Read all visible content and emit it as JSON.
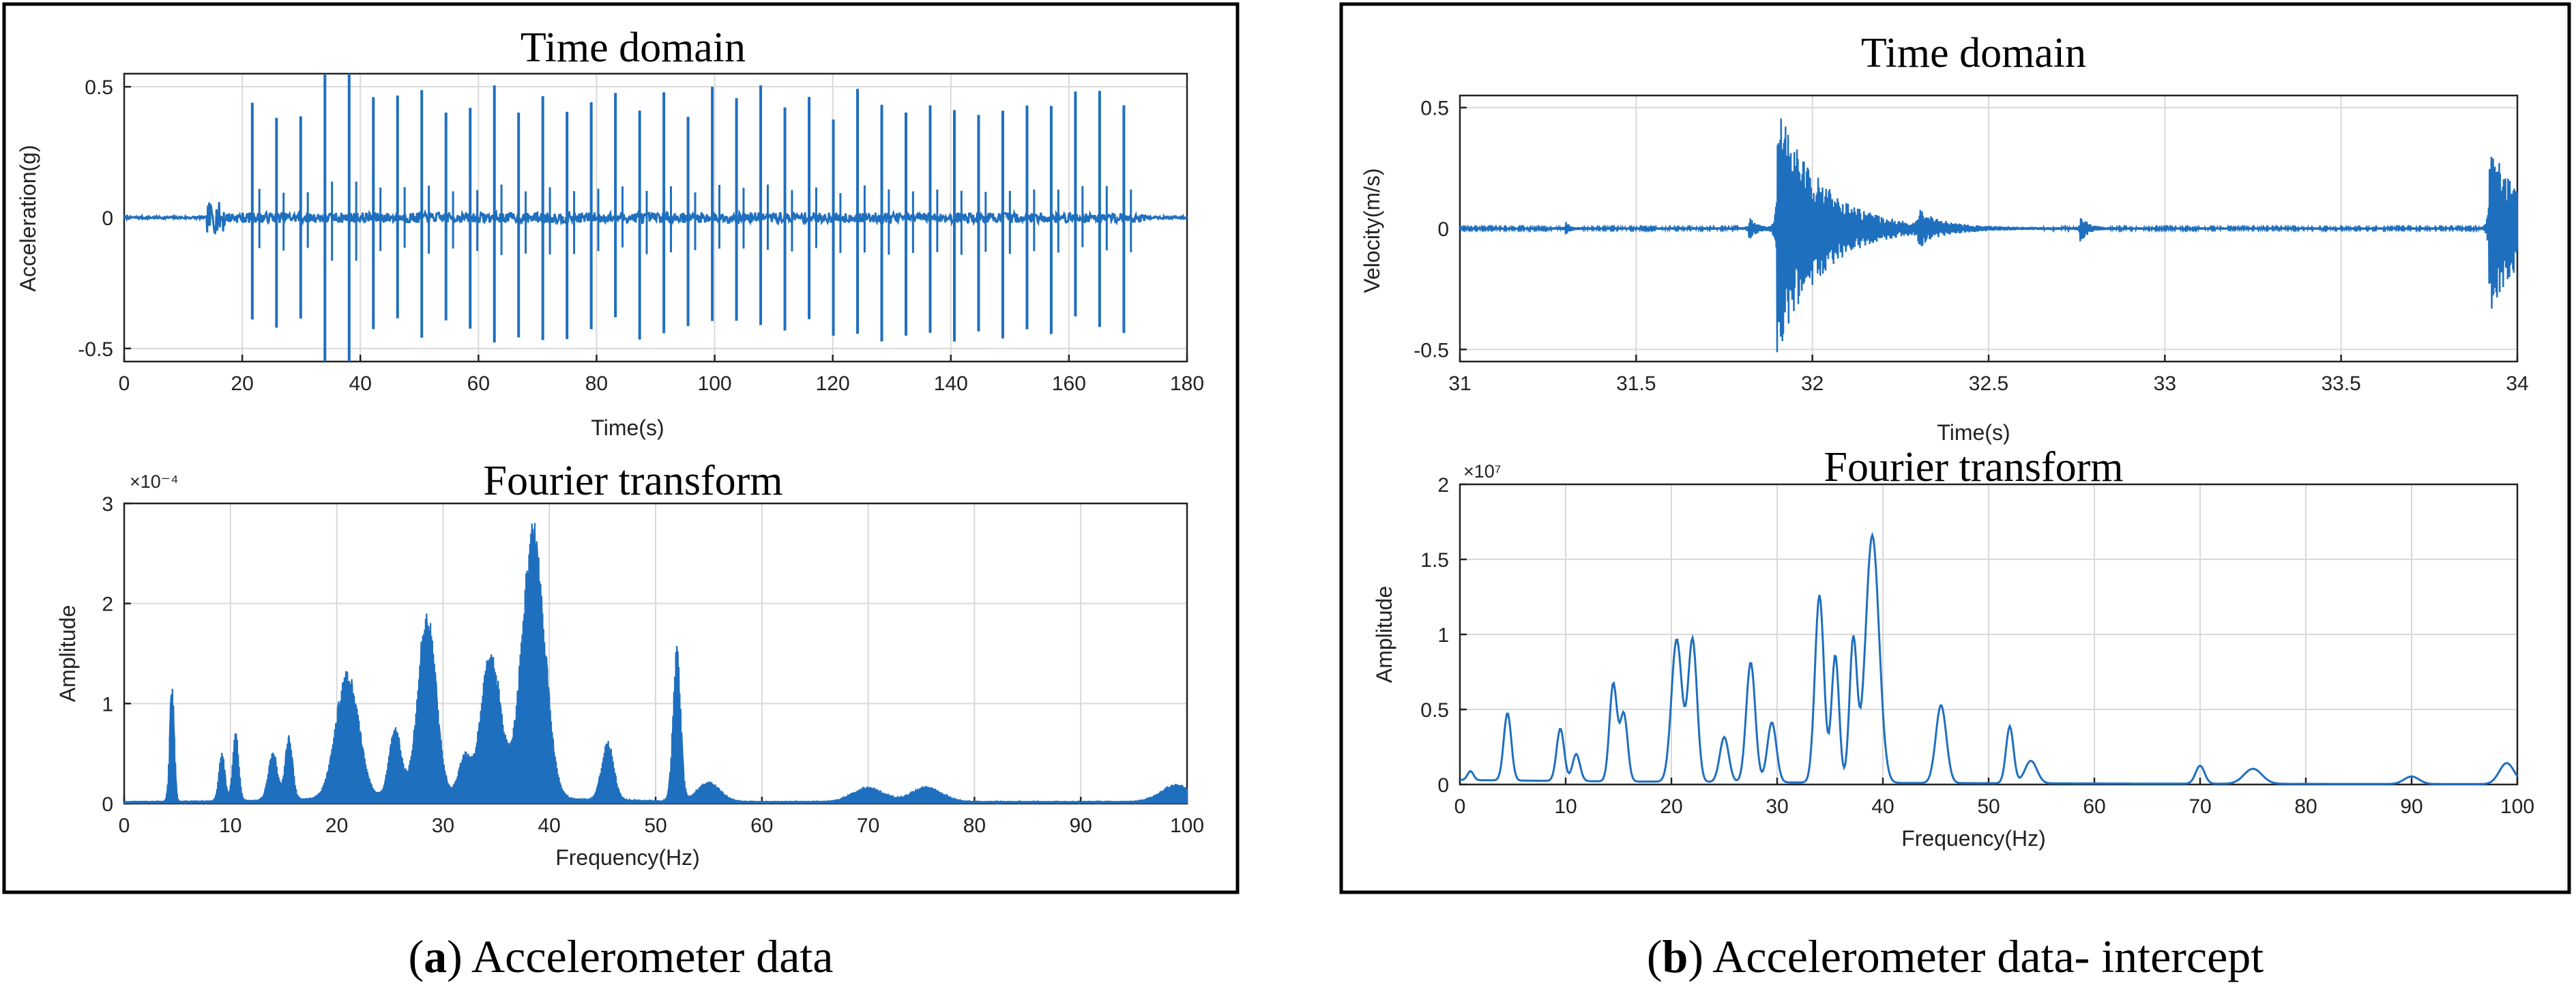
{
  "colors": {
    "signal": "#1f6fbf",
    "frame": "#000000",
    "grid": "#d9d9d9"
  },
  "captions": {
    "a_bold": "a",
    "a_text": " Accelerometer data",
    "b_bold": "b",
    "b_text": " Accelerometer data- intercept"
  },
  "chart_data": [
    {
      "id": "a_time",
      "type": "line",
      "title": "Time domain",
      "xlabel": "Time(s)",
      "ylabel": "Acceleration(g)",
      "xlim": [
        0,
        180
      ],
      "ylim": [
        -0.55,
        0.55
      ],
      "xticks": [
        0,
        20,
        40,
        60,
        80,
        100,
        120,
        140,
        160,
        180
      ],
      "xtick_labels": [
        "0",
        "20",
        "40",
        "60",
        "80",
        "100",
        "120",
        "140",
        "160",
        "180"
      ],
      "yticks": [
        -0.5,
        0,
        0.5
      ],
      "ytick_labels": [
        "-0.5",
        "0",
        "0.5"
      ],
      "signal": {
        "kind": "spikes",
        "start": 14,
        "end": 173,
        "first_spike": 21.7,
        "spike_interval": 4.1,
        "peak_max": 0.55,
        "peak_typical": 0.44,
        "noise_before": 0.005,
        "noise_after": 0.02
      }
    },
    {
      "id": "a_fft",
      "type": "line",
      "title": "Fourier transform",
      "xlabel": "Frequency(Hz)",
      "ylabel": "Amplitude",
      "xlim": [
        0,
        100
      ],
      "ylim": [
        0,
        3
      ],
      "exponent": "×10⁻⁴",
      "xticks": [
        0,
        10,
        20,
        30,
        40,
        50,
        60,
        70,
        80,
        90,
        100
      ],
      "xtick_labels": [
        "0",
        "10",
        "20",
        "30",
        "40",
        "50",
        "60",
        "70",
        "80",
        "90",
        "100"
      ],
      "yticks": [
        0,
        1,
        2,
        3
      ],
      "ytick_labels": [
        "0",
        "1",
        "2",
        "3"
      ],
      "peaks": [
        {
          "f": 4.5,
          "a": 1.2,
          "w": 0.3
        },
        {
          "f": 9.2,
          "a": 0.5,
          "w": 0.4
        },
        {
          "f": 10.5,
          "a": 0.7,
          "w": 0.4
        },
        {
          "f": 14,
          "a": 0.5,
          "w": 0.6
        },
        {
          "f": 15.5,
          "a": 0.65,
          "w": 0.5
        },
        {
          "f": 21,
          "a": 1.3,
          "w": 1.5
        },
        {
          "f": 25.5,
          "a": 0.7,
          "w": 0.8
        },
        {
          "f": 28.5,
          "a": 1.9,
          "w": 1.2
        },
        {
          "f": 32,
          "a": 0.4,
          "w": 0.8
        },
        {
          "f": 34.5,
          "a": 1.5,
          "w": 1.3
        },
        {
          "f": 38.5,
          "a": 2.8,
          "w": 1.5
        },
        {
          "f": 45.5,
          "a": 0.6,
          "w": 0.8
        },
        {
          "f": 52,
          "a": 1.55,
          "w": 0.5
        },
        {
          "f": 55,
          "a": 0.2,
          "w": 1.5
        },
        {
          "f": 70,
          "a": 0.15,
          "w": 2
        },
        {
          "f": 75.5,
          "a": 0.15,
          "w": 2
        },
        {
          "f": 99,
          "a": 0.18,
          "w": 2
        }
      ]
    },
    {
      "id": "b_time",
      "type": "line",
      "title": "Time domain",
      "xlabel": "Time(s)",
      "ylabel": "Velocity(m/s)",
      "xlim": [
        31,
        34
      ],
      "ylim": [
        -0.55,
        0.55
      ],
      "xticks": [
        31,
        31.5,
        32,
        32.5,
        33,
        33.5,
        34
      ],
      "xtick_labels": [
        "31",
        "31.5",
        "32",
        "32.5",
        "33",
        "33.5",
        "34"
      ],
      "yticks": [
        -0.5,
        0,
        0.5
      ],
      "ytick_labels": [
        "-0.5",
        "0",
        "0.5"
      ],
      "signal": {
        "kind": "bursts",
        "noise": 0.005,
        "bursts": [
          {
            "t": 31.3,
            "amp": 0.03,
            "decay": 0.01
          },
          {
            "t": 31.82,
            "amp": 0.05,
            "decay": 0.02
          },
          {
            "t": 31.9,
            "amp": 0.55,
            "decay": 0.12
          },
          {
            "t": 32.3,
            "amp": 0.06,
            "decay": 0.06
          },
          {
            "t": 32.76,
            "amp": 0.06,
            "decay": 0.02
          },
          {
            "t": 33.92,
            "amp": 0.36,
            "decay": 0.1
          }
        ]
      }
    },
    {
      "id": "b_fft",
      "type": "line",
      "title": "Fourier transform",
      "xlabel": "Frequency(Hz)",
      "ylabel": "Amplitude",
      "xlim": [
        0,
        100
      ],
      "ylim": [
        0,
        2
      ],
      "exponent": "×10⁷",
      "xticks": [
        0,
        10,
        20,
        30,
        40,
        50,
        60,
        70,
        80,
        90,
        100
      ],
      "xtick_labels": [
        "0",
        "10",
        "20",
        "30",
        "40",
        "50",
        "60",
        "70",
        "80",
        "90",
        "100"
      ],
      "yticks": [
        0,
        0.5,
        1,
        1.5,
        2
      ],
      "ytick_labels": [
        "0",
        "0.5",
        "1",
        "1.5",
        "2"
      ],
      "peaks": [
        {
          "f": 1,
          "a": 0.06,
          "w": 0.4
        },
        {
          "f": 4.5,
          "a": 0.45,
          "w": 0.5
        },
        {
          "f": 9.5,
          "a": 0.35,
          "w": 0.5
        },
        {
          "f": 11,
          "a": 0.18,
          "w": 0.5
        },
        {
          "f": 14.5,
          "a": 0.65,
          "w": 0.5
        },
        {
          "f": 15.5,
          "a": 0.45,
          "w": 0.5
        },
        {
          "f": 20.5,
          "a": 0.95,
          "w": 0.7
        },
        {
          "f": 22,
          "a": 0.95,
          "w": 0.6
        },
        {
          "f": 25,
          "a": 0.3,
          "w": 0.6
        },
        {
          "f": 27.5,
          "a": 0.8,
          "w": 0.6
        },
        {
          "f": 29.5,
          "a": 0.4,
          "w": 0.6
        },
        {
          "f": 34,
          "a": 1.25,
          "w": 0.6
        },
        {
          "f": 35.5,
          "a": 0.85,
          "w": 0.5
        },
        {
          "f": 37.2,
          "a": 0.95,
          "w": 0.5
        },
        {
          "f": 39,
          "a": 1.65,
          "w": 0.9
        },
        {
          "f": 45.5,
          "a": 0.52,
          "w": 0.7
        },
        {
          "f": 52,
          "a": 0.38,
          "w": 0.5
        },
        {
          "f": 54,
          "a": 0.15,
          "w": 0.8
        },
        {
          "f": 70,
          "a": 0.12,
          "w": 0.6
        },
        {
          "f": 75,
          "a": 0.1,
          "w": 1.2
        },
        {
          "f": 90,
          "a": 0.05,
          "w": 1
        },
        {
          "f": 99,
          "a": 0.14,
          "w": 1
        }
      ]
    }
  ]
}
